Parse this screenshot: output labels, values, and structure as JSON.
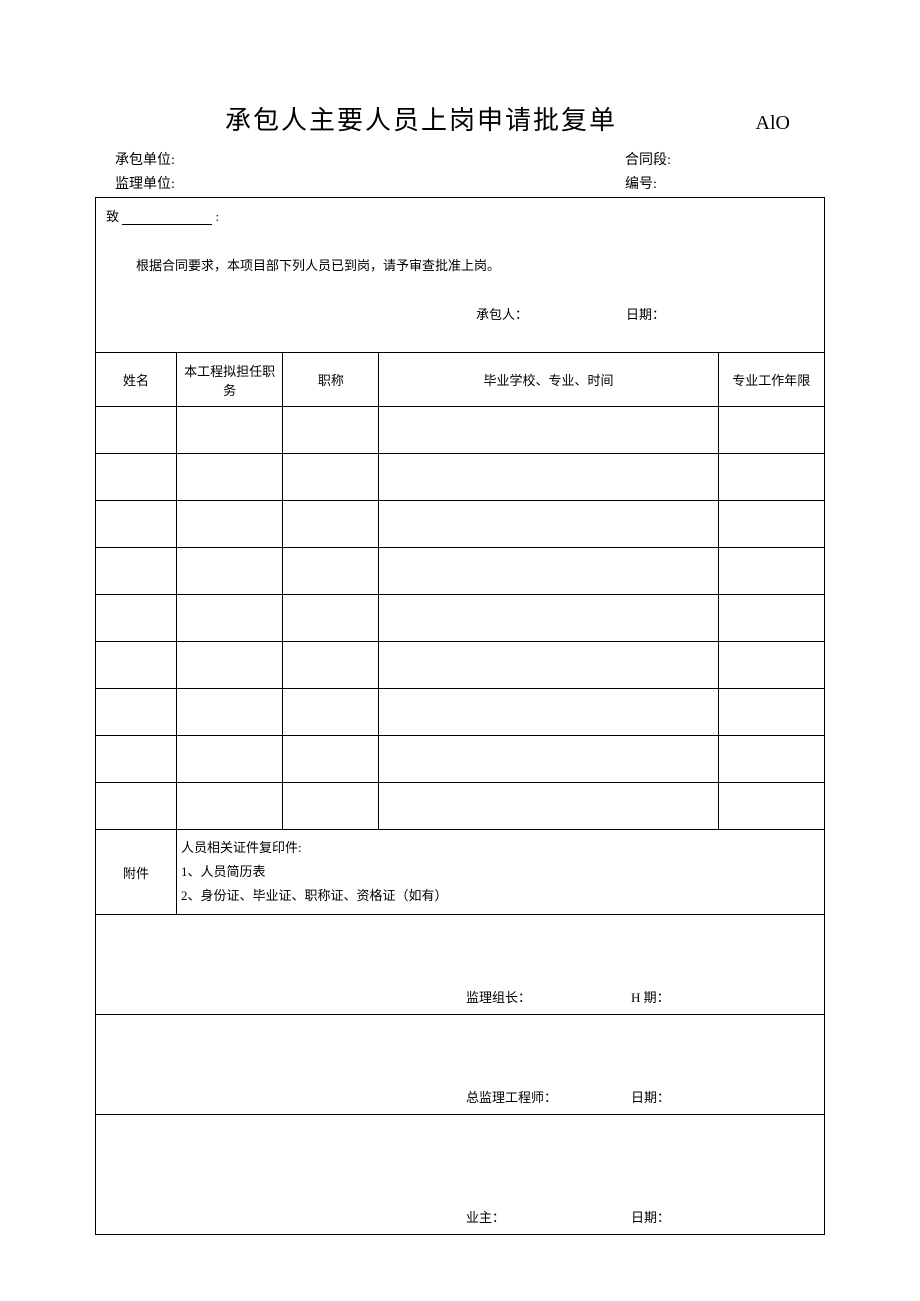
{
  "document": {
    "title": "承包人主要人员上岗申请批复单",
    "form_code": "AlO",
    "header": {
      "contractor_unit_label": "承包单位:",
      "contractor_unit_value": "",
      "contract_section_label": "合同段:",
      "contract_section_value": "",
      "supervision_unit_label": "监理单位:",
      "supervision_unit_value": "",
      "serial_no_label": "编号:",
      "serial_no_value": ""
    },
    "intro": {
      "to_prefix": "致",
      "to_value": "",
      "to_suffix": ":",
      "body": "根据合同要求，本项目部下列人员已到岗，请予审查批准上岗。",
      "signer_label": "承包人：",
      "signer_value": "",
      "date_label": "日期：",
      "date_value": ""
    },
    "table": {
      "columns": {
        "name": "姓名",
        "duty": "本工程拟担任职务",
        "title": "职称",
        "school": "毕业学校、专业、时间",
        "years": "专业工作年限"
      },
      "rows": [
        {
          "name": "",
          "duty": "",
          "title": "",
          "school": "",
          "years": ""
        },
        {
          "name": "",
          "duty": "",
          "title": "",
          "school": "",
          "years": ""
        },
        {
          "name": "",
          "duty": "",
          "title": "",
          "school": "",
          "years": ""
        },
        {
          "name": "",
          "duty": "",
          "title": "",
          "school": "",
          "years": ""
        },
        {
          "name": "",
          "duty": "",
          "title": "",
          "school": "",
          "years": ""
        },
        {
          "name": "",
          "duty": "",
          "title": "",
          "school": "",
          "years": ""
        },
        {
          "name": "",
          "duty": "",
          "title": "",
          "school": "",
          "years": ""
        },
        {
          "name": "",
          "duty": "",
          "title": "",
          "school": "",
          "years": ""
        },
        {
          "name": "",
          "duty": "",
          "title": "",
          "school": "",
          "years": ""
        }
      ]
    },
    "attachment": {
      "label": "附件",
      "line1": "人员相关证件复印件:",
      "line2": "1、人员简历表",
      "line3": "2、身份证、毕业证、职称证、资格证（如有）"
    },
    "approvals": [
      {
        "role_label": "监理组长：",
        "role_value": "",
        "date_label": "H 期：",
        "date_value": ""
      },
      {
        "role_label": "总监理工程师：",
        "role_value": "",
        "date_label": "日期：",
        "date_value": ""
      },
      {
        "role_label": "业主：",
        "role_value": "",
        "date_label": "日期：",
        "date_value": ""
      }
    ]
  },
  "style": {
    "background_color": "#ffffff",
    "text_color": "#000000",
    "border_color": "#000000",
    "title_fontsize": 26,
    "body_fontsize": 14,
    "cell_fontsize": 13,
    "font_family": "SimSun"
  }
}
